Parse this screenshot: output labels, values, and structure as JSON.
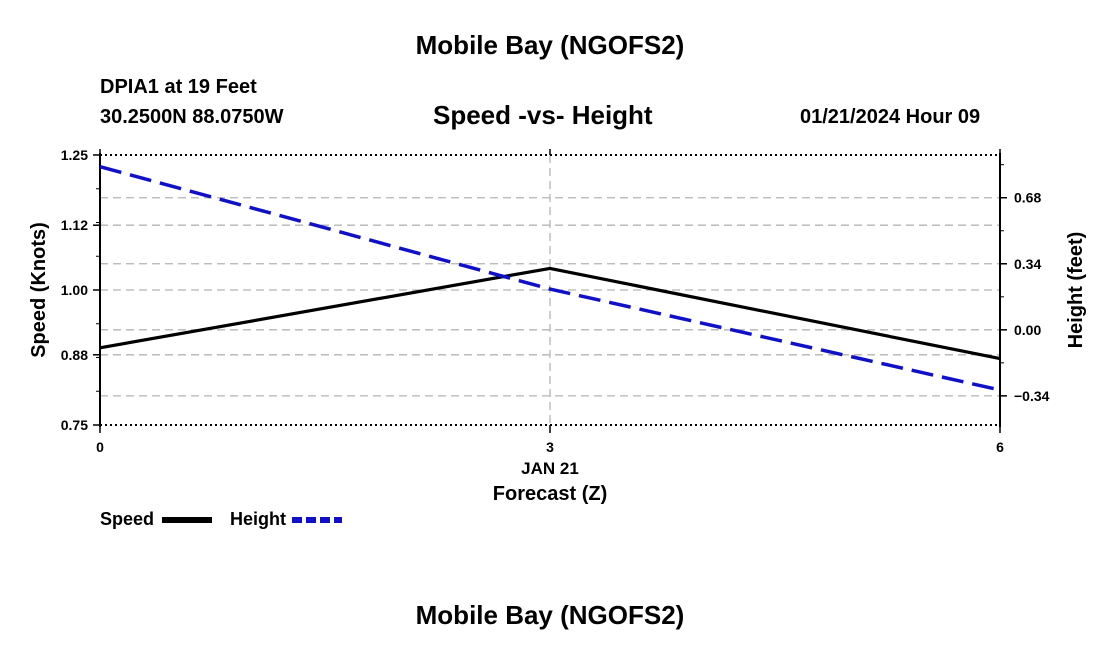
{
  "chart_data": {
    "type": "line",
    "title": "Mobile Bay (NGOFS2)",
    "footer_title": "Mobile Bay (NGOFS2)",
    "subtitle": "Speed -vs- Height",
    "station": "DPIA1 at 19 Feet",
    "coords": "30.2500N  88.0750W",
    "datetime": "01/21/2024 Hour 09",
    "xlabel": "Forecast (Z)",
    "xdate": "JAN 21",
    "x": [
      0,
      3,
      6
    ],
    "xticks": [
      "0",
      "3",
      "6"
    ],
    "xlim": [
      0,
      6
    ],
    "ylabel": "Speed (Knots)",
    "ylim": [
      0.75,
      1.25
    ],
    "yticks": [
      "0.75",
      "0.88",
      "1.00",
      "1.12",
      "1.25"
    ],
    "ylabel_right": "Height (feet)",
    "ylim_right": [
      -0.49,
      0.9
    ],
    "yticks_right": [
      "-0.34",
      "0.00",
      "0.34",
      "0.68"
    ],
    "grid": true,
    "series": [
      {
        "name": "Speed",
        "axis": "left",
        "color": "#000000",
        "style": "solid",
        "values": [
          0.893,
          1.04,
          0.873
        ]
      },
      {
        "name": "Height",
        "axis": "right",
        "color": "#1010c8",
        "style": "dashed",
        "values": [
          0.84,
          0.21,
          -0.31
        ]
      }
    ]
  }
}
